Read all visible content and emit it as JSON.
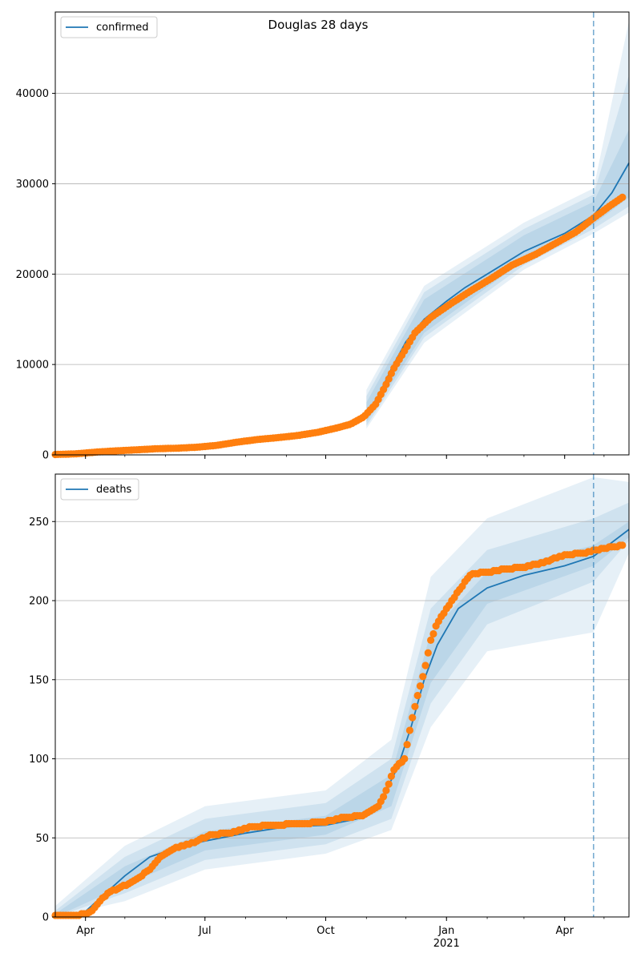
{
  "title": "Douglas 28 days",
  "colors": {
    "line": "#1f77b4",
    "points": "#ff7f0e",
    "band": "#1f77b4",
    "grid": "#b0b0b0",
    "forecast_line": "#1f77b4"
  },
  "x_ticks": [
    {
      "date": "2020-04-01",
      "label": "Apr",
      "sub": ""
    },
    {
      "date": "2020-07-01",
      "label": "Jul",
      "sub": ""
    },
    {
      "date": "2020-10-01",
      "label": "Oct",
      "sub": ""
    },
    {
      "date": "2021-01-01",
      "label": "Jan",
      "sub": "2021"
    },
    {
      "date": "2021-04-01",
      "label": "Apr",
      "sub": ""
    }
  ],
  "chart_data": [
    {
      "type": "line",
      "legend": "confirmed",
      "legend_loc": "upper left",
      "xlim": [
        "2020-03-09",
        "2021-05-20"
      ],
      "ylim": [
        0,
        49000
      ],
      "yticks": [
        0,
        10000,
        20000,
        30000,
        40000
      ],
      "ytick_labels": [
        "0",
        "10000",
        "20000",
        "30000",
        "40000"
      ],
      "grid": "y",
      "forecast_start": "2021-04-23",
      "model": [
        [
          "2020-03-09",
          40
        ],
        [
          "2020-04-01",
          250
        ],
        [
          "2020-05-01",
          600
        ],
        [
          "2020-06-01",
          800
        ],
        [
          "2020-07-01",
          1050
        ],
        [
          "2020-08-01",
          1750
        ],
        [
          "2020-09-01",
          2100
        ],
        [
          "2020-10-01",
          2750
        ],
        [
          "2020-10-20",
          3400
        ],
        [
          "2020-11-01",
          4500
        ],
        [
          "2020-11-10",
          6500
        ],
        [
          "2020-11-20",
          9500
        ],
        [
          "2020-12-01",
          12500
        ],
        [
          "2020-12-15",
          15000
        ],
        [
          "2021-01-01",
          17000
        ],
        [
          "2021-01-15",
          18500
        ],
        [
          "2021-02-01",
          20000
        ],
        [
          "2021-03-01",
          22500
        ],
        [
          "2021-04-01",
          24500
        ],
        [
          "2021-04-23",
          26500
        ],
        [
          "2021-05-07",
          29000
        ],
        [
          "2021-05-20",
          32300
        ]
      ],
      "observed": [
        [
          "2020-03-09",
          40
        ],
        [
          "2020-03-25",
          120
        ],
        [
          "2020-04-10",
          320
        ],
        [
          "2020-04-25",
          450
        ],
        [
          "2020-05-10",
          560
        ],
        [
          "2020-05-25",
          680
        ],
        [
          "2020-06-10",
          740
        ],
        [
          "2020-06-25",
          850
        ],
        [
          "2020-07-10",
          1050
        ],
        [
          "2020-07-25",
          1400
        ],
        [
          "2020-08-10",
          1700
        ],
        [
          "2020-08-25",
          1900
        ],
        [
          "2020-09-10",
          2150
        ],
        [
          "2020-09-25",
          2500
        ],
        [
          "2020-10-10",
          3000
        ],
        [
          "2020-10-20",
          3400
        ],
        [
          "2020-10-30",
          4200
        ],
        [
          "2020-11-08",
          5600
        ],
        [
          "2020-11-15",
          7500
        ],
        [
          "2020-11-22",
          9600
        ],
        [
          "2020-11-30",
          11500
        ],
        [
          "2020-12-08",
          13500
        ],
        [
          "2020-12-20",
          15200
        ],
        [
          "2021-01-05",
          16800
        ],
        [
          "2021-01-20",
          18200
        ],
        [
          "2021-02-05",
          19600
        ],
        [
          "2021-02-20",
          21000
        ],
        [
          "2021-03-10",
          22200
        ],
        [
          "2021-03-25",
          23400
        ],
        [
          "2021-04-10",
          24700
        ],
        [
          "2021-04-23",
          26200
        ],
        [
          "2021-05-05",
          27500
        ],
        [
          "2021-05-15",
          28500
        ]
      ],
      "bands": [
        {
          "lower": [
            [
              "2020-11-01",
              3600
            ],
            [
              "2020-12-15",
              13500
            ],
            [
              "2021-03-01",
              21500
            ],
            [
              "2021-04-23",
              25500
            ],
            [
              "2021-05-20",
              28500
            ]
          ],
          "upper": [
            [
              "2020-11-01",
              5800
            ],
            [
              "2020-12-15",
              17200
            ],
            [
              "2021-03-01",
              24300
            ],
            [
              "2021-04-23",
              28000
            ],
            [
              "2021-05-20",
              36000
            ]
          ]
        },
        {
          "lower": [
            [
              "2020-11-01",
              3200
            ],
            [
              "2020-12-15",
              13000
            ],
            [
              "2021-03-01",
              21000
            ],
            [
              "2021-04-23",
              25000
            ],
            [
              "2021-05-20",
              27500
            ]
          ],
          "upper": [
            [
              "2020-11-01",
              6500
            ],
            [
              "2020-12-15",
              18000
            ],
            [
              "2021-03-01",
              25000
            ],
            [
              "2021-04-23",
              28800
            ],
            [
              "2021-05-20",
              42000
            ]
          ]
        },
        {
          "lower": [
            [
              "2020-11-01",
              2900
            ],
            [
              "2020-12-15",
              12400
            ],
            [
              "2021-03-01",
              20500
            ],
            [
              "2021-04-23",
              24500
            ],
            [
              "2021-05-20",
              26800
            ]
          ],
          "upper": [
            [
              "2020-11-01",
              7200
            ],
            [
              "2020-12-15",
              18700
            ],
            [
              "2021-03-01",
              25700
            ],
            [
              "2021-04-23",
              29500
            ],
            [
              "2021-05-20",
              48000
            ]
          ]
        }
      ]
    },
    {
      "type": "line",
      "legend": "deaths",
      "legend_loc": "upper left",
      "xlim": [
        "2020-03-09",
        "2021-05-20"
      ],
      "ylim": [
        0,
        280
      ],
      "yticks": [
        0,
        50,
        100,
        150,
        200,
        250
      ],
      "ytick_labels": [
        "0",
        "50",
        "100",
        "150",
        "200",
        "250"
      ],
      "grid": "y",
      "forecast_start": "2021-04-23",
      "model": [
        [
          "2020-03-09",
          1
        ],
        [
          "2020-03-30",
          2
        ],
        [
          "2020-04-15",
          14
        ],
        [
          "2020-05-01",
          26
        ],
        [
          "2020-05-20",
          38
        ],
        [
          "2020-06-10",
          44
        ],
        [
          "2020-07-01",
          48
        ],
        [
          "2020-08-01",
          53
        ],
        [
          "2020-09-01",
          57
        ],
        [
          "2020-10-01",
          58
        ],
        [
          "2020-10-25",
          62
        ],
        [
          "2020-11-10",
          70
        ],
        [
          "2020-11-25",
          95
        ],
        [
          "2020-12-05",
          120
        ],
        [
          "2020-12-15",
          150
        ],
        [
          "2020-12-25",
          172
        ],
        [
          "2021-01-10",
          195
        ],
        [
          "2021-02-01",
          208
        ],
        [
          "2021-03-01",
          216
        ],
        [
          "2021-04-01",
          222
        ],
        [
          "2021-04-23",
          228
        ],
        [
          "2021-05-20",
          245
        ]
      ],
      "observed": [
        [
          "2020-03-09",
          1
        ],
        [
          "2020-03-25",
          1
        ],
        [
          "2020-04-05",
          3
        ],
        [
          "2020-04-12",
          10
        ],
        [
          "2020-04-20",
          16
        ],
        [
          "2020-05-01",
          20
        ],
        [
          "2020-05-10",
          24
        ],
        [
          "2020-05-20",
          30
        ],
        [
          "2020-05-28",
          38
        ],
        [
          "2020-06-10",
          44
        ],
        [
          "2020-06-25",
          48
        ],
        [
          "2020-07-05",
          52
        ],
        [
          "2020-07-20",
          53
        ],
        [
          "2020-08-05",
          57
        ],
        [
          "2020-08-20",
          58
        ],
        [
          "2020-09-10",
          59
        ],
        [
          "2020-09-30",
          60
        ],
        [
          "2020-10-15",
          63
        ],
        [
          "2020-10-30",
          64
        ],
        [
          "2020-11-10",
          70
        ],
        [
          "2020-11-15",
          78
        ],
        [
          "2020-11-22",
          93
        ],
        [
          "2020-11-30",
          100
        ],
        [
          "2020-12-05",
          122
        ],
        [
          "2020-12-10",
          140
        ],
        [
          "2020-12-15",
          155
        ],
        [
          "2020-12-20",
          175
        ],
        [
          "2020-12-25",
          186
        ],
        [
          "2021-01-01",
          195
        ],
        [
          "2021-01-10",
          206
        ],
        [
          "2021-01-20",
          217
        ],
        [
          "2021-02-01",
          218
        ],
        [
          "2021-02-15",
          220
        ],
        [
          "2021-03-01",
          221
        ],
        [
          "2021-03-15",
          224
        ],
        [
          "2021-04-01",
          229
        ],
        [
          "2021-04-15",
          230
        ],
        [
          "2021-05-01",
          233
        ],
        [
          "2021-05-15",
          235
        ]
      ],
      "bands": [
        {
          "lower": [
            [
              "2020-03-09",
              0
            ],
            [
              "2020-05-01",
              20
            ],
            [
              "2020-07-01",
              42
            ],
            [
              "2020-10-01",
              52
            ],
            [
              "2020-11-20",
              70
            ],
            [
              "2020-12-20",
              148
            ],
            [
              "2021-02-01",
              198
            ],
            [
              "2021-04-23",
              222
            ],
            [
              "2021-05-20",
              240
            ]
          ],
          "upper": [
            [
              "2020-03-09",
              2
            ],
            [
              "2020-05-01",
              32
            ],
            [
              "2020-07-01",
              54
            ],
            [
              "2020-10-01",
              64
            ],
            [
              "2020-11-20",
              90
            ],
            [
              "2020-12-20",
              180
            ],
            [
              "2021-02-01",
              218
            ],
            [
              "2021-04-23",
              235
            ],
            [
              "2021-05-20",
              250
            ]
          ]
        },
        {
          "lower": [
            [
              "2020-03-09",
              0
            ],
            [
              "2020-05-01",
              15
            ],
            [
              "2020-07-01",
              36
            ],
            [
              "2020-10-01",
              46
            ],
            [
              "2020-11-20",
              62
            ],
            [
              "2020-12-20",
              135
            ],
            [
              "2021-02-01",
              185
            ],
            [
              "2021-04-23",
              212
            ],
            [
              "2021-05-20",
              238
            ]
          ],
          "upper": [
            [
              "2020-03-09",
              4
            ],
            [
              "2020-05-01",
              38
            ],
            [
              "2020-07-01",
              62
            ],
            [
              "2020-10-01",
              72
            ],
            [
              "2020-11-20",
              100
            ],
            [
              "2020-12-20",
              195
            ],
            [
              "2021-02-01",
              232
            ],
            [
              "2021-04-23",
              252
            ],
            [
              "2021-05-20",
              262
            ]
          ]
        },
        {
          "lower": [
            [
              "2020-03-09",
              0
            ],
            [
              "2020-05-01",
              10
            ],
            [
              "2020-07-01",
              30
            ],
            [
              "2020-10-01",
              40
            ],
            [
              "2020-11-20",
              55
            ],
            [
              "2020-12-20",
              120
            ],
            [
              "2021-02-01",
              168
            ],
            [
              "2021-04-23",
              180
            ],
            [
              "2021-05-20",
              230
            ]
          ],
          "upper": [
            [
              "2020-03-09",
              7
            ],
            [
              "2020-05-01",
              45
            ],
            [
              "2020-07-01",
              70
            ],
            [
              "2020-10-01",
              80
            ],
            [
              "2020-11-20",
              112
            ],
            [
              "2020-12-20",
              215
            ],
            [
              "2021-02-01",
              252
            ],
            [
              "2021-04-23",
              278
            ],
            [
              "2021-05-20",
              275
            ]
          ]
        }
      ]
    }
  ]
}
